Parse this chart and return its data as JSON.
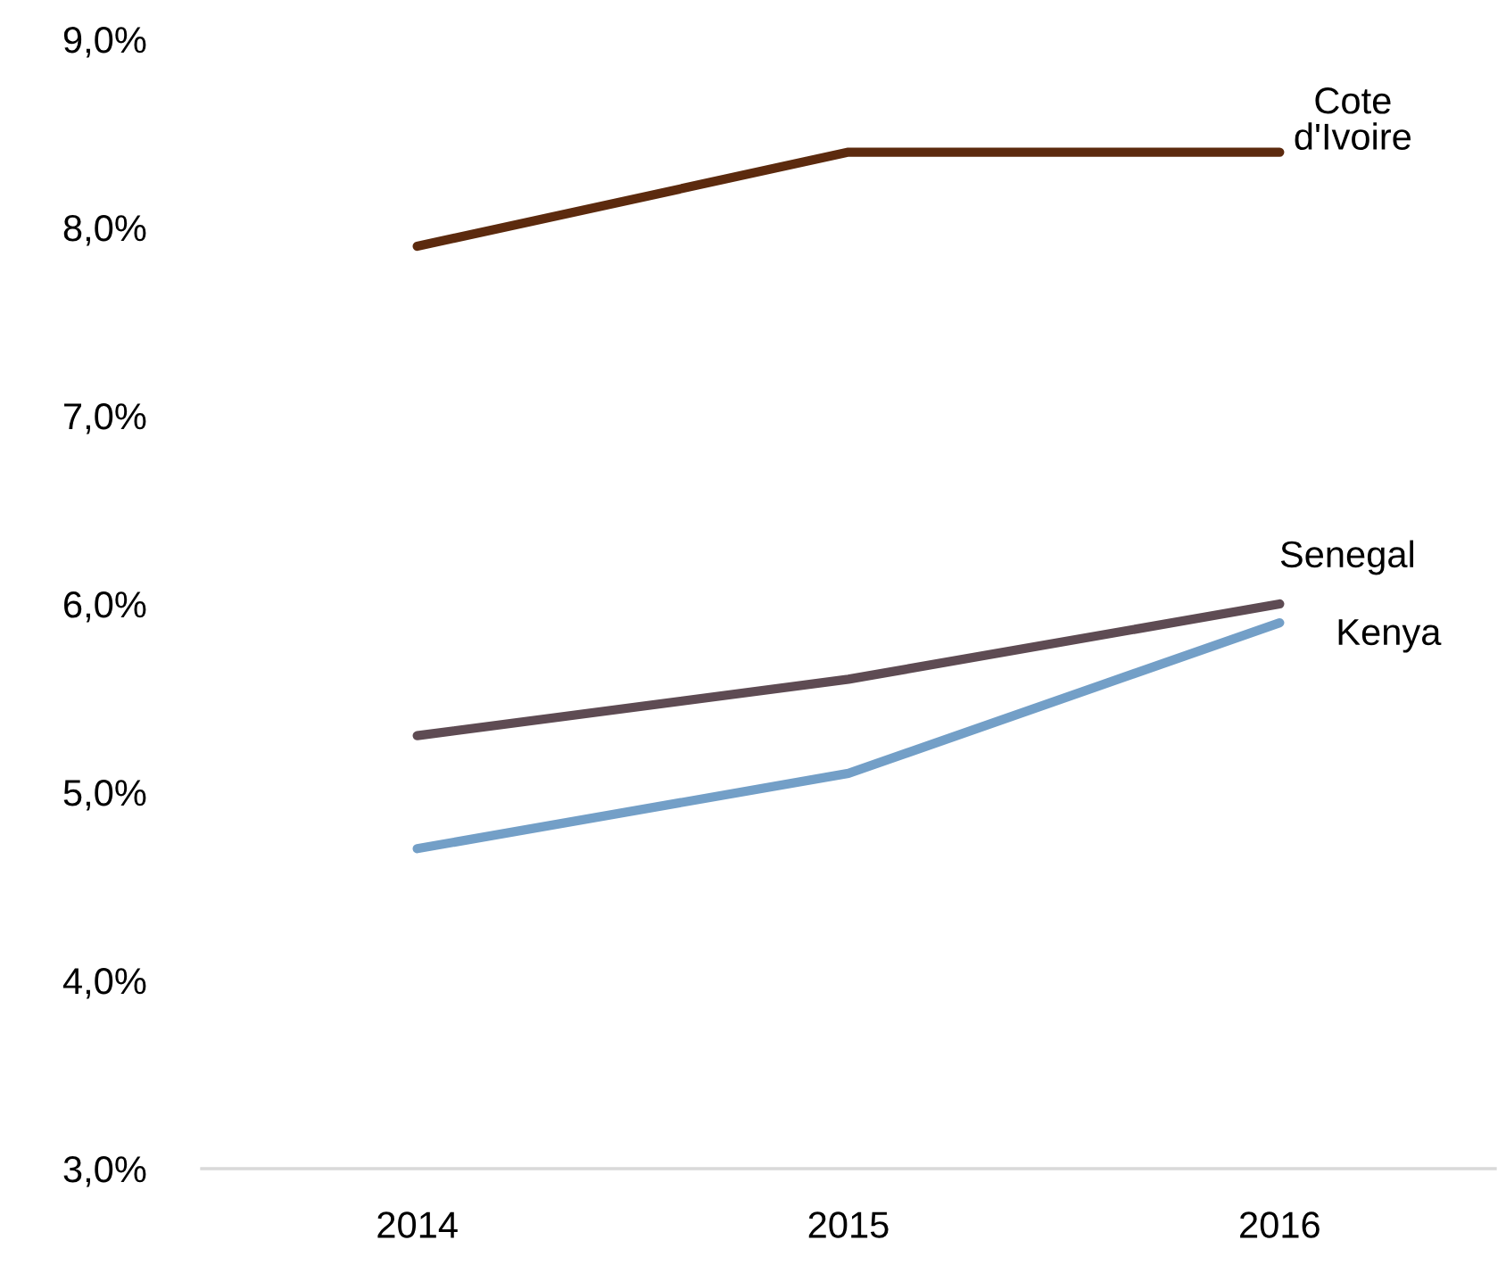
{
  "chart_data": {
    "type": "line",
    "categories": [
      "2014",
      "2015",
      "2016"
    ],
    "series": [
      {
        "name": "Cote d'Ivoire",
        "color": "#5c2a0e",
        "values": [
          7.9,
          8.4,
          8.4
        ]
      },
      {
        "name": "Senegal",
        "color": "#5e4b53",
        "values": [
          5.3,
          5.6,
          6.0
        ]
      },
      {
        "name": "Kenya",
        "color": "#739fc7",
        "values": [
          4.7,
          5.1,
          5.9
        ]
      }
    ],
    "ylim": [
      3,
      9
    ],
    "yticks": [
      {
        "value": 3,
        "label": "3,0%"
      },
      {
        "value": 4,
        "label": "4,0%"
      },
      {
        "value": 5,
        "label": "5,0%"
      },
      {
        "value": 6,
        "label": "6,0%"
      },
      {
        "value": 7,
        "label": "7,0%"
      },
      {
        "value": 8,
        "label": "8,0%"
      },
      {
        "value": 9,
        "label": "9,0%"
      }
    ],
    "grid": false,
    "legend": false,
    "marker": "none",
    "line_style": "solid"
  }
}
